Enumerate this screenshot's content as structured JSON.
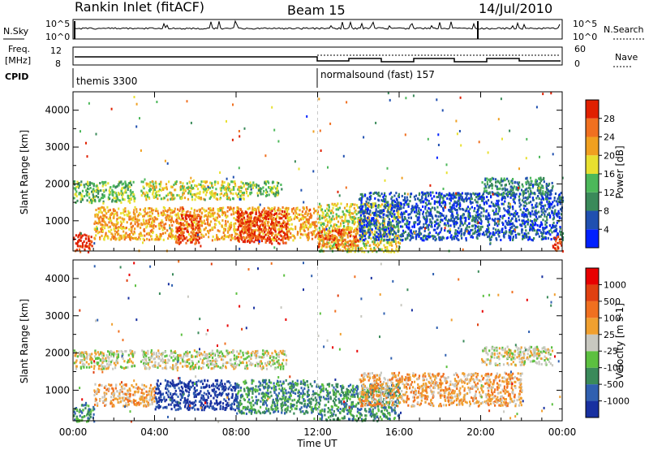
{
  "header": {
    "title": "Rankin Inlet (fitACF)",
    "beam": "Beam 15",
    "date": "14/Jul/2010"
  },
  "noise_panel": {
    "left_label": "N.Sky",
    "left_ticks": [
      "10^5",
      "10^0"
    ],
    "right_ticks": [
      "10^5",
      "10^0"
    ],
    "right_label": "N.Search"
  },
  "freq_panel": {
    "left_label_1": "Freq.",
    "left_label_2": "[MHz]",
    "left_ticks": [
      "12",
      "8"
    ],
    "right_ticks": [
      "60",
      "0"
    ],
    "right_label": "Nave"
  },
  "cpid": {
    "label": "CPID",
    "modes": [
      {
        "name": "themis 3300",
        "start_hour": 0
      },
      {
        "name": "normalsound (fast) 157",
        "start_hour": 12
      }
    ]
  },
  "chart_data": [
    {
      "type": "heatmap",
      "quantity": "Power",
      "ylabel": "Slant Range [km]",
      "xlabel": "Time UT",
      "x_ticks": [
        "00:00",
        "04:00",
        "08:00",
        "12:00",
        "16:00",
        "20:00",
        "00:00"
      ],
      "xlim_hours": [
        0,
        24
      ],
      "ylim": [
        180,
        4500
      ],
      "y_ticks": [
        1000,
        2000,
        3000,
        4000
      ],
      "colorbar": {
        "label": "Power [dB]",
        "ticks": [
          "4",
          "8",
          "12",
          "16",
          "20",
          "24",
          "28"
        ],
        "colors": [
          "#0020ff",
          "#2050b0",
          "#3a8a5a",
          "#4cb85a",
          "#e8e030",
          "#f0a020",
          "#f07020",
          "#e02000"
        ]
      },
      "echo_regions": [
        {
          "t0": 0.0,
          "t1": 0.9,
          "r0": 180,
          "r1": 700,
          "level": 7
        },
        {
          "t0": 0.0,
          "t1": 3.0,
          "r0": 1500,
          "r1": 2100,
          "level": 3
        },
        {
          "t0": 3.3,
          "t1": 8.5,
          "r0": 1600,
          "r1": 2100,
          "level": 4
        },
        {
          "t0": 8.5,
          "t1": 10.2,
          "r0": 1700,
          "r1": 2100,
          "level": 3
        },
        {
          "t0": 1.0,
          "t1": 12.0,
          "r0": 500,
          "r1": 1400,
          "level": 5
        },
        {
          "t0": 5.0,
          "t1": 6.2,
          "r0": 400,
          "r1": 1200,
          "level": 7
        },
        {
          "t0": 8.0,
          "t1": 10.5,
          "r0": 400,
          "r1": 1300,
          "level": 7
        },
        {
          "t0": 12.0,
          "t1": 16.0,
          "r0": 180,
          "r1": 1500,
          "level": 4
        },
        {
          "t0": 12.0,
          "t1": 14.0,
          "r0": 300,
          "r1": 800,
          "level": 6
        },
        {
          "t0": 14.0,
          "t1": 24.0,
          "r0": 500,
          "r1": 1800,
          "level": 1
        },
        {
          "t0": 20.0,
          "t1": 23.5,
          "r0": 1700,
          "r1": 2200,
          "level": 2
        },
        {
          "t0": 23.5,
          "t1": 24.0,
          "r0": 180,
          "r1": 600,
          "level": 7
        }
      ]
    },
    {
      "type": "heatmap",
      "quantity": "Velocity",
      "ylabel": "Slant Range [km]",
      "xlabel": "Time UT",
      "x_ticks": [
        "00:00",
        "04:00",
        "08:00",
        "12:00",
        "16:00",
        "20:00",
        "00:00"
      ],
      "xlim_hours": [
        0,
        24
      ],
      "ylim": [
        180,
        4500
      ],
      "y_ticks": [
        1000,
        2000,
        3000,
        4000
      ],
      "colorbar": {
        "label": "Velocity [m s-1]",
        "ticks": [
          "1000",
          "500",
          "100",
          "25",
          "-25",
          "-100",
          "-500",
          "-1000"
        ],
        "colors": [
          "#1830a0",
          "#3060b0",
          "#3a8a5a",
          "#5cc040",
          "#c8c8c0",
          "#f0a030",
          "#f07020",
          "#e04010",
          "#e80000"
        ]
      },
      "echo_regions": [
        {
          "t0": 0.0,
          "t1": 3.0,
          "r0": 1600,
          "r1": 2100,
          "level": 4
        },
        {
          "t0": 3.3,
          "t1": 10.5,
          "r0": 1600,
          "r1": 2100,
          "level": 4
        },
        {
          "t0": 1.0,
          "t1": 4.0,
          "r0": 600,
          "r1": 1200,
          "level": 5
        },
        {
          "t0": 4.0,
          "t1": 8.0,
          "r0": 500,
          "r1": 1300,
          "level": 0
        },
        {
          "t0": 8.0,
          "t1": 12.0,
          "r0": 400,
          "r1": 1300,
          "level": 2
        },
        {
          "t0": 12.0,
          "t1": 16.0,
          "r0": 200,
          "r1": 1200,
          "level": 2
        },
        {
          "t0": 14.0,
          "t1": 22.0,
          "r0": 600,
          "r1": 1500,
          "level": 5
        },
        {
          "t0": 20.0,
          "t1": 23.5,
          "r0": 1700,
          "r1": 2200,
          "level": 4
        },
        {
          "t0": 0.0,
          "t1": 1.0,
          "r0": 180,
          "r1": 700,
          "level": 2
        }
      ]
    }
  ]
}
